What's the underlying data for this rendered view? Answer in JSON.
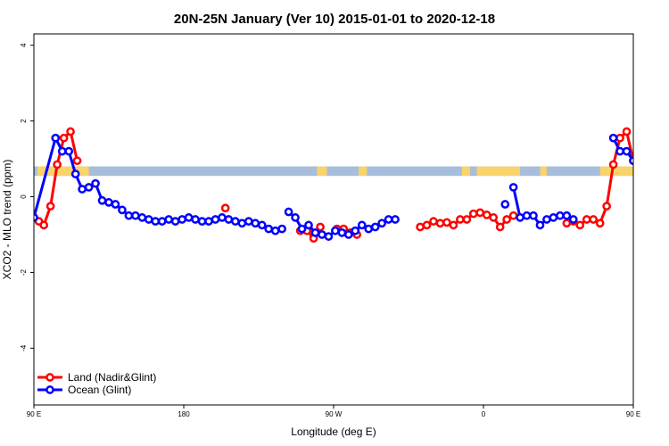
{
  "chart_data": {
    "type": "line",
    "title": "20N-25N January (Ver 10)   2015-01-01 to 2020-12-18",
    "xlabel": "Longitude (deg E)",
    "ylabel": "XCO2 - MLO trend (ppm)",
    "xlim": [
      90,
      450
    ],
    "ylim": [
      -5.5,
      4.3
    ],
    "x_ticks": [
      {
        "value": 90,
        "label": "90 E"
      },
      {
        "value": 180,
        "label": "180"
      },
      {
        "value": 270,
        "label": "90 W"
      },
      {
        "value": 360,
        "label": "0"
      },
      {
        "value": 450,
        "label": "90 E"
      },
      {
        "value": 540,
        "label": "180"
      }
    ],
    "y_ticks": [
      {
        "value": -4,
        "label": "-4"
      },
      {
        "value": -2,
        "label": "-2"
      },
      {
        "value": 0,
        "label": "0"
      },
      {
        "value": 2,
        "label": "2"
      },
      {
        "value": 4,
        "label": "4"
      }
    ],
    "map_band": {
      "ymin": 0.55,
      "ymax": 0.8,
      "ocean_color": "#a6bddb",
      "land_color": "#f9d36b"
    },
    "legend_position": "bottom-left",
    "series": [
      {
        "name": "Land (Nadir&Glint)",
        "color": "#ff0000",
        "segments": [
          [
            [
              90,
              -0.55
            ],
            [
              93,
              -0.65
            ],
            [
              96,
              -0.75
            ],
            [
              100,
              -0.25
            ],
            [
              104,
              0.85
            ],
            [
              108,
              1.55
            ],
            [
              112,
              1.72
            ],
            [
              116,
              0.95
            ]
          ],
          [
            [
              205,
              -0.3
            ]
          ],
          [
            [
              250,
              -0.9
            ],
            [
              254,
              -0.9
            ],
            [
              258,
              -1.1
            ],
            [
              262,
              -0.8
            ]
          ],
          [
            [
              272,
              -0.85
            ],
            [
              276,
              -0.85
            ],
            [
              280,
              -0.95
            ],
            [
              284,
              -1.0
            ]
          ],
          [
            [
              322,
              -0.8
            ],
            [
              326,
              -0.75
            ],
            [
              330,
              -0.65
            ],
            [
              334,
              -0.7
            ],
            [
              338,
              -0.68
            ],
            [
              342,
              -0.75
            ],
            [
              346,
              -0.6
            ],
            [
              350,
              -0.6
            ],
            [
              354,
              -0.45
            ],
            [
              358,
              -0.42
            ],
            [
              362,
              -0.48
            ],
            [
              366,
              -0.55
            ],
            [
              370,
              -0.8
            ],
            [
              374,
              -0.6
            ],
            [
              378,
              -0.5
            ]
          ],
          [
            [
              410,
              -0.7
            ],
            [
              414,
              -0.65
            ],
            [
              418,
              -0.75
            ],
            [
              422,
              -0.6
            ],
            [
              426,
              -0.6
            ],
            [
              430,
              -0.7
            ],
            [
              434,
              -0.25
            ],
            [
              438,
              0.85
            ],
            [
              442,
              1.55
            ],
            [
              446,
              1.72
            ],
            [
              450,
              0.95
            ]
          ]
        ]
      },
      {
        "name": "Ocean (Glint)",
        "color": "#0000ff",
        "segments": [
          [
            [
              90,
              -0.55
            ],
            [
              103,
              1.55
            ],
            [
              107,
              1.2
            ],
            [
              111,
              1.2
            ],
            [
              115,
              0.6
            ],
            [
              119,
              0.2
            ],
            [
              123,
              0.25
            ],
            [
              127,
              0.35
            ],
            [
              131,
              -0.1
            ],
            [
              135,
              -0.15
            ],
            [
              139,
              -0.2
            ],
            [
              143,
              -0.35
            ],
            [
              147,
              -0.5
            ],
            [
              151,
              -0.5
            ],
            [
              155,
              -0.55
            ],
            [
              159,
              -0.6
            ],
            [
              163,
              -0.65
            ],
            [
              167,
              -0.65
            ],
            [
              171,
              -0.6
            ],
            [
              175,
              -0.65
            ],
            [
              179,
              -0.6
            ],
            [
              183,
              -0.55
            ],
            [
              187,
              -0.6
            ],
            [
              191,
              -0.65
            ],
            [
              195,
              -0.65
            ],
            [
              199,
              -0.6
            ],
            [
              203,
              -0.55
            ],
            [
              207,
              -0.6
            ],
            [
              211,
              -0.65
            ],
            [
              215,
              -0.7
            ],
            [
              219,
              -0.65
            ],
            [
              223,
              -0.7
            ],
            [
              227,
              -0.75
            ],
            [
              231,
              -0.85
            ],
            [
              235,
              -0.9
            ],
            [
              239,
              -0.85
            ]
          ],
          [
            [
              243,
              -0.4
            ],
            [
              247,
              -0.55
            ],
            [
              251,
              -0.85
            ],
            [
              255,
              -0.75
            ],
            [
              259,
              -0.95
            ],
            [
              263,
              -1.0
            ],
            [
              267,
              -1.05
            ],
            [
              271,
              -0.9
            ],
            [
              275,
              -0.95
            ],
            [
              279,
              -1.0
            ],
            [
              283,
              -0.9
            ],
            [
              287,
              -0.75
            ],
            [
              291,
              -0.85
            ],
            [
              295,
              -0.8
            ],
            [
              299,
              -0.7
            ],
            [
              303,
              -0.6
            ],
            [
              307,
              -0.6
            ]
          ],
          [
            [
              373,
              -0.2
            ]
          ],
          [
            [
              378,
              0.25
            ],
            [
              382,
              -0.55
            ],
            [
              386,
              -0.5
            ],
            [
              390,
              -0.5
            ],
            [
              394,
              -0.75
            ],
            [
              398,
              -0.6
            ],
            [
              402,
              -0.55
            ],
            [
              406,
              -0.5
            ],
            [
              410,
              -0.5
            ],
            [
              414,
              -0.6
            ]
          ],
          [
            [
              438,
              1.55
            ],
            [
              442,
              1.2
            ],
            [
              446,
              1.2
            ],
            [
              450,
              0.95
            ]
          ]
        ]
      }
    ]
  }
}
